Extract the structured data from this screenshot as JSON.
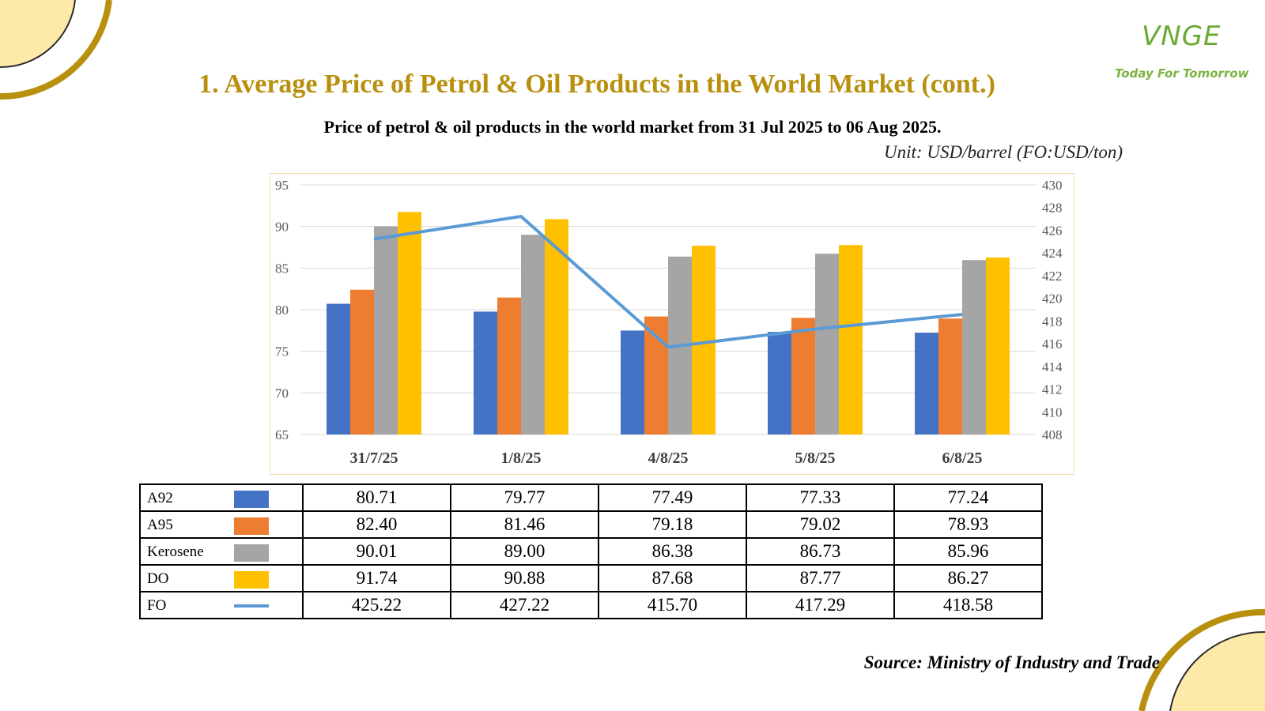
{
  "header": {
    "title": "1. Average Price of Petrol & Oil Products in the World Market (cont.)",
    "logo_mark": "VNGE",
    "logo_tagline": "Today For Tomorrow"
  },
  "subtitle": "Price of petrol & oil products in the world market from 31 Jul 2025 to 06 Aug 2025.",
  "unit": "Unit: USD/barrel (FO:USD/ton)",
  "source": "Source: Ministry of Industry and Trade",
  "colors": {
    "A92": "#4472c4",
    "A95": "#ed7d31",
    "Kerosene": "#a5a5a5",
    "DO": "#ffc000",
    "FO": "#5b9bd5",
    "title": "#b8900e",
    "decoration_gold": "#b8900e",
    "decoration_fill": "#fde9a8"
  },
  "chart_data": {
    "type": "bar",
    "categories": [
      "31/7/25",
      "1/8/25",
      "4/8/25",
      "5/8/25",
      "6/8/25"
    ],
    "series": [
      {
        "name": "A92",
        "type": "bar",
        "axis": "left",
        "values": [
          80.71,
          79.77,
          77.49,
          77.33,
          77.24
        ]
      },
      {
        "name": "A95",
        "type": "bar",
        "axis": "left",
        "values": [
          82.4,
          81.46,
          79.18,
          79.02,
          78.93
        ]
      },
      {
        "name": "Kerosene",
        "type": "bar",
        "axis": "left",
        "values": [
          90.01,
          89.0,
          86.38,
          86.73,
          85.96
        ]
      },
      {
        "name": "DO",
        "type": "bar",
        "axis": "left",
        "values": [
          91.74,
          90.88,
          87.68,
          87.77,
          86.27
        ]
      },
      {
        "name": "FO",
        "type": "line",
        "axis": "right",
        "values": [
          425.22,
          427.22,
          415.7,
          417.29,
          418.58
        ]
      }
    ],
    "y_left": {
      "min": 65,
      "max": 95,
      "ticks": [
        "65",
        "70",
        "75",
        "80",
        "85",
        "90",
        "95"
      ]
    },
    "y_right": {
      "min": 408,
      "max": 430,
      "ticks": [
        "408",
        "410",
        "412",
        "414",
        "416",
        "418",
        "420",
        "422",
        "424",
        "426",
        "428",
        "430"
      ]
    },
    "grid": true,
    "legend": "table-below"
  },
  "table": {
    "rows": [
      {
        "label": "A92",
        "key": "A92",
        "marker": "box",
        "values": [
          "80.71",
          "79.77",
          "77.49",
          "77.33",
          "77.24"
        ]
      },
      {
        "label": "A95",
        "key": "A95",
        "marker": "box",
        "values": [
          "82.40",
          "81.46",
          "79.18",
          "79.02",
          "78.93"
        ]
      },
      {
        "label": "Kerosene",
        "key": "Kerosene",
        "marker": "box",
        "values": [
          "90.01",
          "89.00",
          "86.38",
          "86.73",
          "85.96"
        ]
      },
      {
        "label": "DO",
        "key": "DO",
        "marker": "box",
        "values": [
          "91.74",
          "90.88",
          "87.68",
          "87.77",
          "86.27"
        ]
      },
      {
        "label": "FO",
        "key": "FO",
        "marker": "line",
        "values": [
          "425.22",
          "427.22",
          "415.70",
          "417.29",
          "418.58"
        ]
      }
    ]
  }
}
